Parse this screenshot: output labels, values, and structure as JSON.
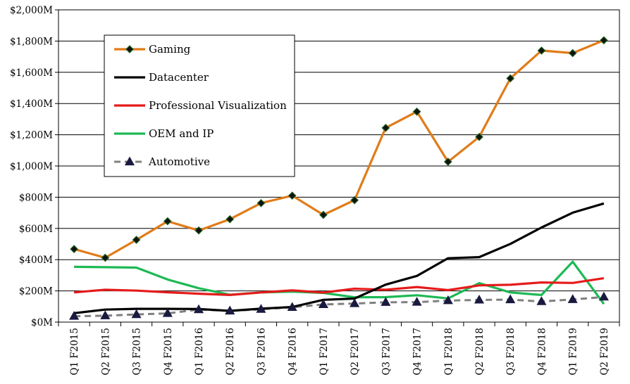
{
  "chart_data": {
    "type": "line",
    "categories": [
      "Q1 F2015",
      "Q2 F2015",
      "Q3 F2015",
      "Q4 F2015",
      "Q1 F2016",
      "Q2 F2016",
      "Q3 F2016",
      "Q4 F2016",
      "Q1 F2017",
      "Q2 F2017",
      "Q3 F2017",
      "Q4 F2017",
      "Q1 F2018",
      "Q2 F2018",
      "Q3 F2018",
      "Q4 F2018",
      "Q1 F2019",
      "Q2 F2019"
    ],
    "y_ticks": [
      "$0M",
      "$200M",
      "$400M",
      "$600M",
      "$800M",
      "$1,000M",
      "$1,200M",
      "$1,400M",
      "$1,600M",
      "$1,800M",
      "$2,000M"
    ],
    "ylim": [
      0,
      2000
    ],
    "grid": "horizontal",
    "legend_position": "top-left",
    "series": [
      {
        "name": "Gaming",
        "color": "#E07B18",
        "dash": "solid",
        "marker": "diamond",
        "values": [
          468,
          412,
          527,
          646,
          587,
          659,
          762,
          810,
          687,
          781,
          1244,
          1348,
          1027,
          1186,
          1561,
          1739,
          1723,
          1805
        ]
      },
      {
        "name": "Datacenter",
        "color": "#000000",
        "dash": "solid",
        "marker": "none",
        "values": [
          57,
          80,
          85,
          85,
          84,
          72,
          86,
          97,
          143,
          151,
          240,
          296,
          409,
          416,
          501,
          606,
          701,
          760
        ]
      },
      {
        "name": "Professional Visualization",
        "color": "#E51B1B",
        "dash": "solid",
        "marker": "none",
        "values": [
          190,
          207,
          202,
          191,
          182,
          174,
          190,
          203,
          189,
          214,
          207,
          225,
          205,
          235,
          239,
          254,
          251,
          281
        ]
      },
      {
        "name": "OEM and IP",
        "color": "#1DB954",
        "dash": "solid",
        "marker": "none",
        "values": [
          354,
          352,
          349,
          273,
          217,
          175,
          190,
          195,
          187,
          159,
          160,
          172,
          152,
          250,
          190,
          174,
          387,
          116
        ]
      },
      {
        "name": "Automotive",
        "color": "#808080",
        "dash": "dashed",
        "marker": "triangle",
        "values": [
          38,
          41,
          49,
          56,
          80,
          72,
          82,
          95,
          113,
          119,
          127,
          128,
          138,
          142,
          144,
          132,
          145,
          161
        ]
      }
    ]
  }
}
